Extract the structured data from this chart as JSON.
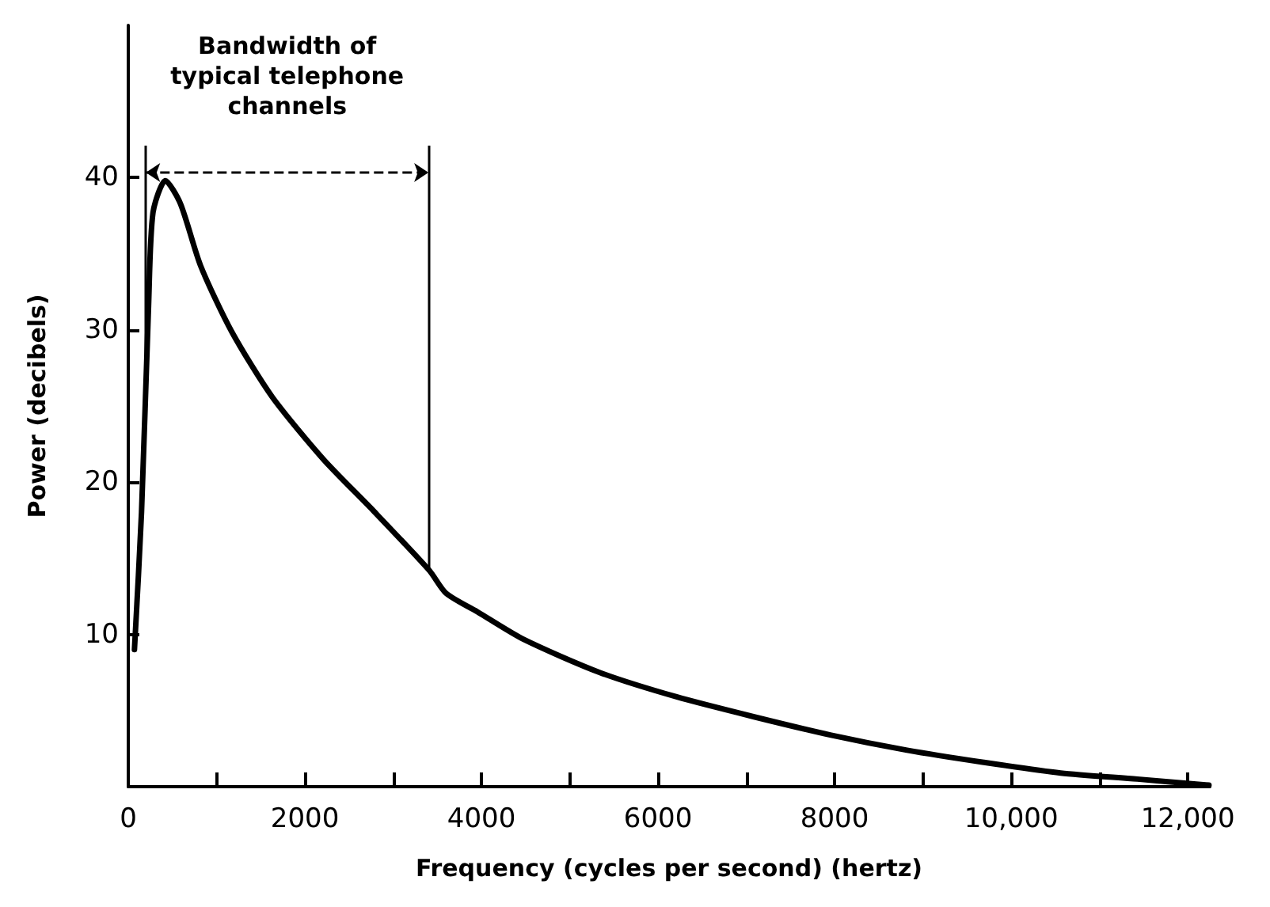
{
  "chart_data": {
    "type": "line",
    "xlabel": "Frequency (cycles per second) (hertz)",
    "ylabel": "Power (decibels)",
    "x": [
      70,
      150,
      230,
      280,
      420,
      590,
      820,
      1170,
      1630,
      2210,
      2780,
      3410,
      3600,
      3950,
      4470,
      5340,
      6210,
      7080,
      7950,
      8820,
      9690,
      10560,
      11430,
      12240
    ],
    "series": [
      {
        "color": "#000000",
        "values": [
          9,
          18,
          31.6,
          37.7,
          39.8,
          38.3,
          34.2,
          29.9,
          25.6,
          21.5,
          18.1,
          14.2,
          12.7,
          11.5,
          9.7,
          7.5,
          5.9,
          4.6,
          3.4,
          2.4,
          1.6,
          0.9,
          0.5,
          0.1
        ]
      }
    ],
    "xlim": [
      0,
      12250
    ],
    "ylim": [
      0,
      50
    ],
    "xticks": [
      0,
      {
        "value": 1000,
        "label": null
      },
      2000,
      {
        "value": 3000,
        "label": null
      },
      4000,
      {
        "value": 5000,
        "label": null
      },
      6000,
      {
        "value": 7000,
        "label": null
      },
      8000,
      {
        "value": 9000,
        "label": null
      },
      {
        "value": 10000,
        "label": "10,000"
      },
      {
        "value": 11000,
        "label": null
      },
      {
        "value": 12000,
        "label": "12,000"
      }
    ],
    "yticks": [
      10,
      20,
      30,
      40
    ],
    "ref_lines": [
      {
        "axis": "x",
        "value": 200
      },
      {
        "axis": "x",
        "value": 3400
      }
    ],
    "annotations": [
      "Bandwidth of\ntypical telephone\nchannels"
    ],
    "grid": false,
    "marker": "none",
    "line_style": "solid"
  }
}
